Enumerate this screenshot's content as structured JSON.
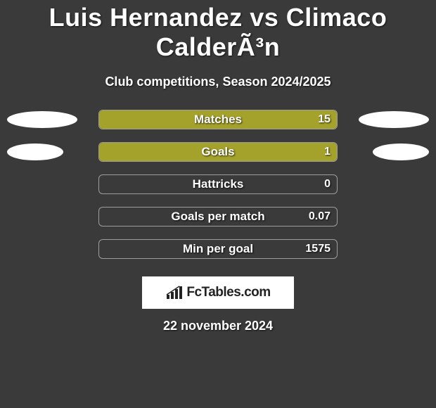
{
  "title": "Luis Hernandez vs Climaco CalderÃ³n",
  "subtitle": "Club competitions, Season 2024/2025",
  "bar_color": "#a5a22b",
  "border_color": "rgba(255,255,255,0.5)",
  "background_color": "#3a3a3a",
  "text_color": "#ffffff",
  "stats": [
    {
      "label": "Matches",
      "value": "15",
      "fill_pct": 100,
      "ellipse_l_w": 100,
      "ellipse_r_w": 100
    },
    {
      "label": "Goals",
      "value": "1",
      "fill_pct": 100,
      "ellipse_l_w": 80,
      "ellipse_r_w": 80
    },
    {
      "label": "Hattricks",
      "value": "0",
      "fill_pct": 0,
      "ellipse_l_w": 0,
      "ellipse_r_w": 0
    },
    {
      "label": "Goals per match",
      "value": "0.07",
      "fill_pct": 0,
      "ellipse_l_w": 0,
      "ellipse_r_w": 0
    },
    {
      "label": "Min per goal",
      "value": "1575",
      "fill_pct": 0,
      "ellipse_l_w": 0,
      "ellipse_r_w": 0
    }
  ],
  "logo_text": "FcTables.com",
  "date": "22 november 2024"
}
